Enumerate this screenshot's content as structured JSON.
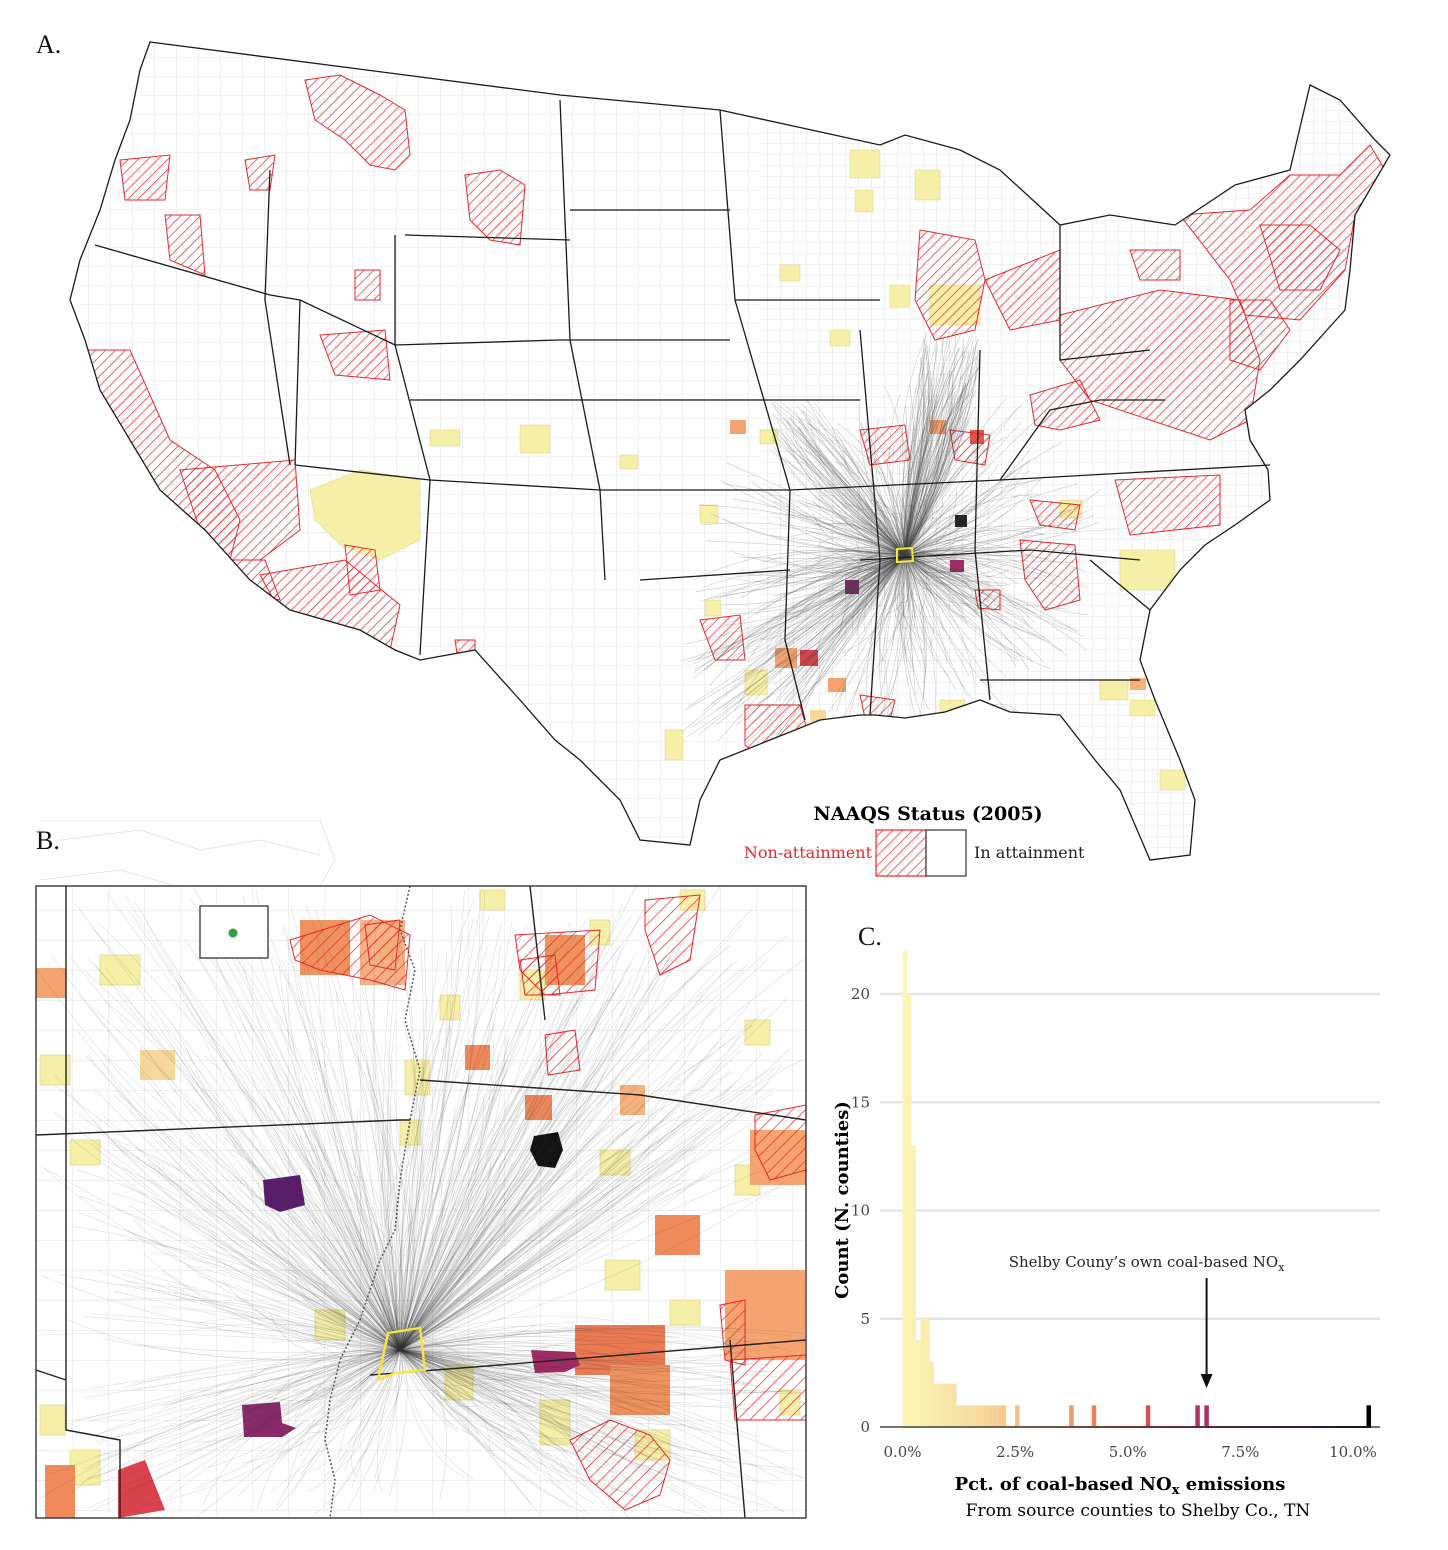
{
  "panels": {
    "a": "A.",
    "b": "B.",
    "c": "C."
  },
  "legend": {
    "title": "NAAQS Status (2005)",
    "non_attainment": "Non-attainment",
    "in_attainment": "In attainment"
  },
  "colors": {
    "non_attainment": "#e8262b",
    "flow_lines": "#444444",
    "target_county": "#f5e83a",
    "inset_marker": "#2ea043",
    "ramp": [
      "#fbf5b5",
      "#f6d89c",
      "#f5a46f",
      "#e4574e",
      "#a42c66",
      "#5b1d6e",
      "#000000"
    ]
  },
  "chart_data": {
    "type": "bar",
    "title": "",
    "xlabel": "Pct. of coal-based NOx emissions",
    "xlabel_parts": {
      "pre": "Pct. of coal-based NO",
      "sub": "x",
      "post": " emissions"
    },
    "subtitle": "From source counties to Shelby Co., TN",
    "ylabel": "Count (N. counties)",
    "xlim": [
      -0.5,
      10.6
    ],
    "ylim": [
      0,
      22.5
    ],
    "xticks": [
      0,
      2.5,
      5,
      7.5,
      10
    ],
    "xtick_labels": [
      "0.0%",
      "2.5%",
      "5.0%",
      "7.5%",
      "10.0%"
    ],
    "yticks": [
      0,
      5,
      10,
      15,
      20
    ],
    "ytick_labels": [
      "0",
      "5",
      "10",
      "15",
      "20"
    ],
    "grid": true,
    "bin_width": 0.1,
    "bins": [
      {
        "x": 0.0,
        "count": 22
      },
      {
        "x": 0.1,
        "count": 20
      },
      {
        "x": 0.2,
        "count": 13
      },
      {
        "x": 0.3,
        "count": 4
      },
      {
        "x": 0.4,
        "count": 5
      },
      {
        "x": 0.5,
        "count": 5
      },
      {
        "x": 0.6,
        "count": 3
      },
      {
        "x": 0.7,
        "count": 2
      },
      {
        "x": 0.8,
        "count": 2
      },
      {
        "x": 0.9,
        "count": 2
      },
      {
        "x": 1.0,
        "count": 2
      },
      {
        "x": 1.1,
        "count": 2
      },
      {
        "x": 1.2,
        "count": 1
      },
      {
        "x": 1.3,
        "count": 1
      },
      {
        "x": 1.4,
        "count": 1
      },
      {
        "x": 1.5,
        "count": 1
      },
      {
        "x": 1.6,
        "count": 1
      },
      {
        "x": 1.7,
        "count": 1
      },
      {
        "x": 1.8,
        "count": 1
      },
      {
        "x": 1.9,
        "count": 1
      },
      {
        "x": 2.0,
        "count": 1
      },
      {
        "x": 2.1,
        "count": 1
      },
      {
        "x": 2.2,
        "count": 1
      },
      {
        "x": 2.5,
        "count": 1
      },
      {
        "x": 3.7,
        "count": 1
      },
      {
        "x": 4.2,
        "count": 1
      },
      {
        "x": 5.4,
        "count": 1
      },
      {
        "x": 6.5,
        "count": 1
      },
      {
        "x": 6.7,
        "count": 1
      },
      {
        "x": 10.3,
        "count": 1
      }
    ],
    "annotation": {
      "text_pre": "Shelby Couny’s own coal-based NO",
      "text_sub": "x",
      "x": 6.7
    }
  }
}
